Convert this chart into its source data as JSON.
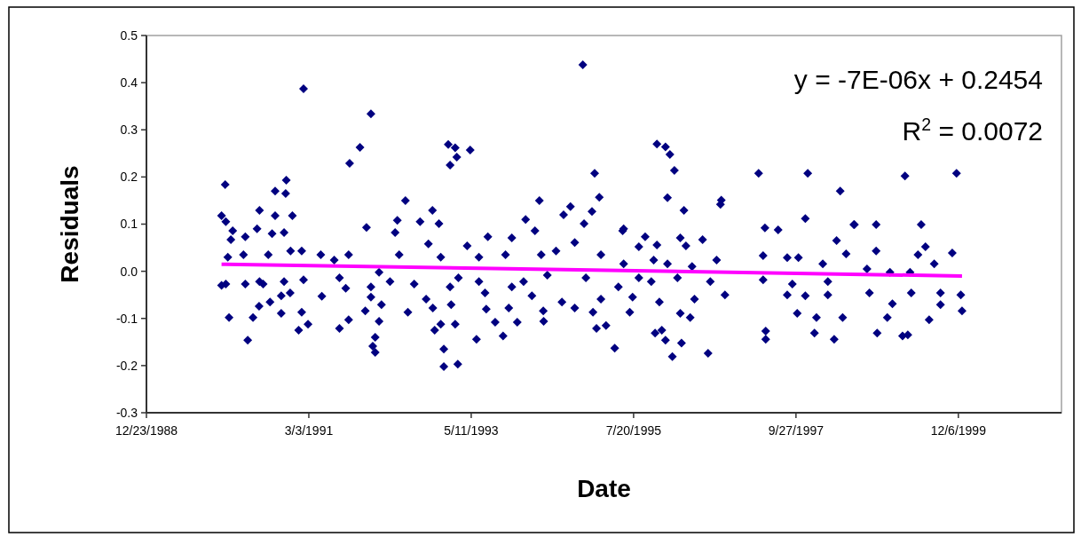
{
  "chart_data": {
    "type": "scatter",
    "xlabel": "Date",
    "ylabel": "Residuals",
    "marker": "diamond",
    "grid": false,
    "xlim": [
      "1988-12-23",
      "2001-04-27"
    ],
    "xticks": [
      {
        "value": "1988-12-23",
        "label": "12/23/1988"
      },
      {
        "value": "1991-03-03",
        "label": "3/3/1991"
      },
      {
        "value": "1993-05-11",
        "label": "5/11/1993"
      },
      {
        "value": "1995-07-20",
        "label": "7/20/1995"
      },
      {
        "value": "1997-09-27",
        "label": "9/27/1997"
      },
      {
        "value": "1999-12-06",
        "label": "12/6/1999"
      }
    ],
    "ylim": [
      -0.3,
      0.5
    ],
    "yticks": [
      -0.3,
      -0.2,
      -0.1,
      {
        "value": 0,
        "label": "0.0"
      },
      0.1,
      0.2,
      0.3,
      0.4,
      0.5
    ],
    "annotations": [
      "y = -7E-06x + 0.2454",
      "R$^{2}$ = 0.0072"
    ],
    "series": [
      {
        "color": "#000080",
        "x": [
          "1990-01-15",
          "1991-02-05",
          "1992-01-03",
          "1991-11-10",
          "1991-09-20",
          "1989-12-28",
          "1990-01-18",
          "1990-11-12",
          "1990-11-09",
          "1990-09-18",
          "1990-07-03",
          "1990-09-18",
          "1990-12-12",
          "1990-02-21",
          "1990-02-12",
          "1990-04-24",
          "1990-06-21",
          "1990-11-01",
          "1990-09-03",
          "1991-12-12",
          "1990-12-03",
          "1991-01-27",
          "1991-05-01",
          "1990-04-15",
          "1990-08-15",
          "1990-01-28",
          "1991-09-15",
          "1991-07-06",
          "1990-01-18",
          "1989-12-28",
          "1990-04-24",
          "1990-07-03",
          "1990-07-21",
          "1991-02-05",
          "1990-11-01",
          "1991-08-01",
          "1992-02-12",
          "1990-10-18",
          "1990-12-01",
          "1991-05-06",
          "1991-09-01",
          "1992-01-03",
          "1992-01-03",
          "1990-08-24",
          "1990-07-01",
          "1992-02-24",
          "1990-02-03",
          "1990-06-01",
          "1990-10-18",
          "1991-01-27",
          "1991-12-06",
          "1991-09-15",
          "1992-02-12",
          "1991-01-12",
          "1991-02-27",
          "1991-08-01",
          "1990-05-06",
          "1992-01-24",
          "1992-01-12",
          "1992-01-24",
          "1994-11-12",
          "1993-01-18",
          "1993-02-21",
          "1993-03-01",
          "1993-01-27",
          "1993-05-06",
          "1995-01-09",
          "1995-02-01",
          "1994-12-27",
          "1994-11-18",
          "1994-09-12",
          "1994-08-09",
          "1994-04-12",
          "1992-06-21",
          "1992-11-01",
          "1992-05-12",
          "1992-05-01",
          "1992-09-01",
          "1992-12-03",
          "1994-02-03",
          "1994-03-21",
          "1995-05-27",
          "1993-08-01",
          "1993-11-27",
          "1992-10-12",
          "1993-04-21",
          "1994-10-03",
          "1992-05-21",
          "1992-12-12",
          "1993-06-18",
          "1993-10-27",
          "1994-04-21",
          "1994-07-03",
          "1995-02-09",
          "1992-04-06",
          "1992-08-03",
          "1993-03-09",
          "1993-06-18",
          "1994-01-24",
          "1994-05-21",
          "1994-11-27",
          "1995-05-06",
          "1992-10-01",
          "1993-01-27",
          "1993-07-18",
          "1993-11-27",
          "1994-03-06",
          "1994-08-01",
          "1995-02-09",
          "1992-07-03",
          "1992-11-03",
          "1993-02-01",
          "1993-07-24",
          "1993-11-12",
          "1994-05-01",
          "1994-10-03",
          "1995-01-01",
          "1992-11-12",
          "1992-12-12",
          "1993-02-21",
          "1993-09-06",
          "1993-12-24",
          "1994-05-03",
          "1995-01-18",
          "1995-03-06",
          "1993-06-06",
          "1993-10-15",
          "1995-04-18",
          "1992-12-27",
          "1992-12-27",
          "1993-03-06",
          "1995-11-12",
          "1995-12-24",
          "1996-01-15",
          "1996-02-06",
          "1996-01-03",
          "1996-03-24",
          "1996-09-24",
          "1996-09-20",
          "1997-03-27",
          "1997-11-24",
          "1998-05-03",
          "1997-11-12",
          "1995-06-01",
          "1997-04-27",
          "1997-07-01",
          "1998-07-09",
          "1995-09-15",
          "1995-08-15",
          "1995-11-12",
          "1996-03-06",
          "1996-04-03",
          "1996-06-24",
          "1998-04-15",
          "1998-06-01",
          "1995-06-01",
          "1995-10-27",
          "1996-01-03",
          "1996-05-03",
          "1996-09-01",
          "1997-04-18",
          "1997-08-15",
          "1997-10-09",
          "1998-02-06",
          "1995-08-15",
          "1995-10-15",
          "1996-02-21",
          "1996-08-01",
          "1997-04-18",
          "1997-09-09",
          "1998-03-03",
          "1995-07-15",
          "1995-11-24",
          "1996-05-15",
          "1996-10-12",
          "1997-08-15",
          "1997-11-12",
          "1998-03-03",
          "1995-07-01",
          "1996-03-06",
          "1996-04-24",
          "1997-10-03",
          "1998-01-06",
          "1998-05-15",
          "1995-11-03",
          "1995-12-06",
          "1995-12-24",
          "1996-03-12",
          "1996-01-27",
          "1996-07-21",
          "1997-05-01",
          "1997-05-01",
          "1997-12-27",
          "1998-04-03",
          "1999-03-18",
          "1999-11-27",
          "1998-07-12",
          "1998-10-27",
          "1999-06-06",
          "1998-10-27",
          "1999-06-27",
          "1999-05-21",
          "1999-11-06",
          "1999-08-09",
          "1998-09-12",
          "1999-01-03",
          "1999-04-12",
          "1998-09-24",
          "1999-04-18",
          "1999-09-09",
          "1999-12-18",
          "1999-01-15",
          "1999-09-09",
          "1998-12-21",
          "1999-07-15",
          "1999-12-24",
          "1998-11-01",
          "1999-03-06",
          "1999-04-01"
        ],
        "values": [
          0.184,
          0.387,
          0.334,
          0.263,
          0.229,
          0.118,
          0.105,
          0.193,
          0.165,
          0.17,
          0.129,
          0.118,
          0.118,
          0.086,
          0.067,
          0.073,
          0.09,
          0.082,
          0.08,
          0.093,
          0.043,
          0.043,
          0.035,
          0.035,
          0.035,
          0.03,
          0.035,
          0.024,
          -0.027,
          -0.03,
          -0.027,
          -0.022,
          -0.027,
          -0.018,
          -0.022,
          -0.014,
          -0.002,
          -0.052,
          -0.046,
          -0.053,
          -0.036,
          -0.033,
          -0.055,
          -0.065,
          -0.074,
          -0.071,
          -0.098,
          -0.098,
          -0.089,
          -0.087,
          -0.084,
          -0.103,
          -0.106,
          -0.125,
          -0.112,
          -0.121,
          -0.146,
          -0.14,
          -0.159,
          -0.172,
          0.438,
          0.269,
          0.262,
          0.242,
          0.225,
          0.257,
          0.208,
          0.157,
          0.127,
          0.101,
          0.137,
          0.12,
          0.15,
          0.15,
          0.129,
          0.108,
          0.082,
          0.105,
          0.101,
          0.11,
          0.086,
          0.086,
          0.073,
          0.071,
          0.058,
          0.054,
          0.061,
          0.035,
          0.03,
          0.03,
          0.035,
          0.035,
          0.043,
          0.035,
          -0.022,
          -0.027,
          -0.014,
          -0.022,
          -0.022,
          -0.008,
          -0.014,
          -0.033,
          -0.059,
          -0.033,
          -0.046,
          -0.033,
          -0.052,
          -0.065,
          -0.059,
          -0.087,
          -0.078,
          -0.071,
          -0.08,
          -0.078,
          -0.084,
          -0.078,
          -0.087,
          -0.125,
          -0.112,
          -0.112,
          -0.108,
          -0.108,
          -0.106,
          -0.121,
          -0.115,
          -0.144,
          -0.137,
          -0.163,
          -0.165,
          -0.202,
          -0.197,
          0.27,
          0.264,
          0.248,
          0.214,
          0.156,
          0.129,
          0.151,
          0.142,
          0.208,
          0.208,
          0.17,
          0.112,
          0.09,
          0.092,
          0.088,
          0.099,
          0.073,
          0.052,
          0.056,
          0.071,
          0.054,
          0.067,
          0.065,
          0.037,
          0.016,
          0.024,
          0.016,
          0.01,
          0.024,
          0.033,
          0.029,
          0.029,
          0.016,
          -0.014,
          -0.022,
          -0.014,
          -0.022,
          -0.018,
          -0.027,
          -0.022,
          -0.055,
          -0.065,
          -0.059,
          -0.05,
          -0.05,
          -0.052,
          -0.05,
          -0.087,
          -0.089,
          -0.098,
          -0.089,
          -0.098,
          -0.098,
          -0.131,
          -0.125,
          -0.146,
          -0.152,
          -0.181,
          -0.174,
          -0.127,
          -0.144,
          -0.131,
          -0.144,
          0.202,
          0.208,
          0.099,
          0.099,
          0.099,
          0.043,
          0.052,
          0.035,
          0.039,
          0.016,
          0.005,
          -0.002,
          -0.002,
          -0.046,
          -0.046,
          -0.046,
          -0.05,
          -0.069,
          -0.071,
          -0.098,
          -0.103,
          -0.084,
          -0.131,
          -0.137,
          -0.135
        ]
      },
      {
        "type": "line",
        "color": "#ff00ff",
        "marker": "none",
        "x": [
          "1989-12-28",
          "1999-12-24"
        ],
        "values": [
          0.015,
          -0.01
        ]
      }
    ]
  }
}
